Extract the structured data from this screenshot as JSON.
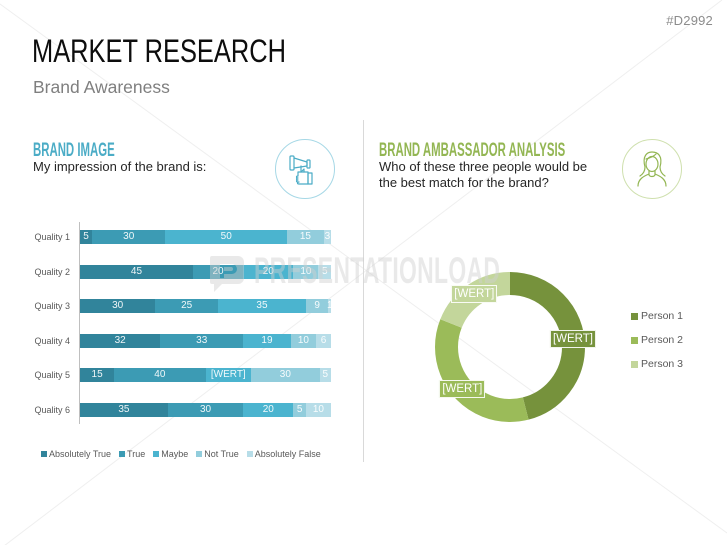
{
  "page": {
    "id_tag": "#D2992",
    "title": "MARKET RESEARCH",
    "subtitle": "Brand Awareness"
  },
  "watermark": {
    "text": "PRESENTATIONLOAD",
    "icon": "presentationload-logo-icon"
  },
  "brand_image": {
    "heading": "BRAND IMAGE",
    "description": "My impression of the brand is:",
    "icon": "megaphone-hand-icon",
    "accent": "#4BACC6"
  },
  "brand_ambassador": {
    "heading": "BRAND AMBASSADOR ANALYSIS",
    "description_line1": "Who of these three people would be",
    "description_line2": "the best match for the brand?",
    "icon": "woman-person-icon",
    "accent": "#93B653"
  },
  "chart_data": [
    {
      "type": "bar",
      "orientation": "horizontal",
      "stacked": "percent",
      "title": "BRAND IMAGE",
      "xlabel": "",
      "ylabel": "",
      "grid": false,
      "legend_position": "bottom",
      "categories": [
        "Quality 1",
        "Quality 2",
        "Quality 3",
        "Quality 4",
        "Quality 5",
        "Quality 6"
      ],
      "series": [
        {
          "name": "Absolutely True",
          "color": "#31849B",
          "values": [
            5,
            45,
            30,
            32,
            15,
            35
          ],
          "labels": [
            "5",
            "45",
            "30",
            "32",
            "15",
            "35"
          ]
        },
        {
          "name": "True",
          "color": "#3C9BB4",
          "values": [
            30,
            20,
            25,
            33,
            40,
            30
          ],
          "labels": [
            "30",
            "20",
            "25",
            "33",
            "40",
            "30"
          ]
        },
        {
          "name": "Maybe",
          "color": "#4BB4CF",
          "values": [
            50,
            20,
            35,
            19,
            20,
            20
          ],
          "labels": [
            "50",
            "20",
            "35",
            "19",
            "[WERT]",
            "20"
          ]
        },
        {
          "name": "Not True",
          "color": "#92CDDC",
          "values": [
            15,
            10,
            9,
            10,
            30,
            5
          ],
          "labels": [
            "15",
            "10",
            "9",
            "10",
            "30",
            "5"
          ]
        },
        {
          "name": "Absolutely False",
          "color": "#B7DDE8",
          "values": [
            3,
            5,
            1,
            6,
            5,
            10
          ],
          "labels": [
            "3",
            "5",
            "1",
            "6",
            "5",
            "10"
          ]
        }
      ]
    },
    {
      "type": "pie",
      "variant": "donut",
      "title": "BRAND AMBASSADOR ANALYSIS",
      "legend_position": "right",
      "categories": [
        "Person 1",
        "Person 2",
        "Person 3"
      ],
      "values": [
        46,
        35,
        19
      ],
      "labels": [
        "[WERT]",
        "[WERT]",
        "[WERT]"
      ],
      "colors": [
        "#76923C",
        "#9BBB59",
        "#C3D69B"
      ]
    }
  ]
}
